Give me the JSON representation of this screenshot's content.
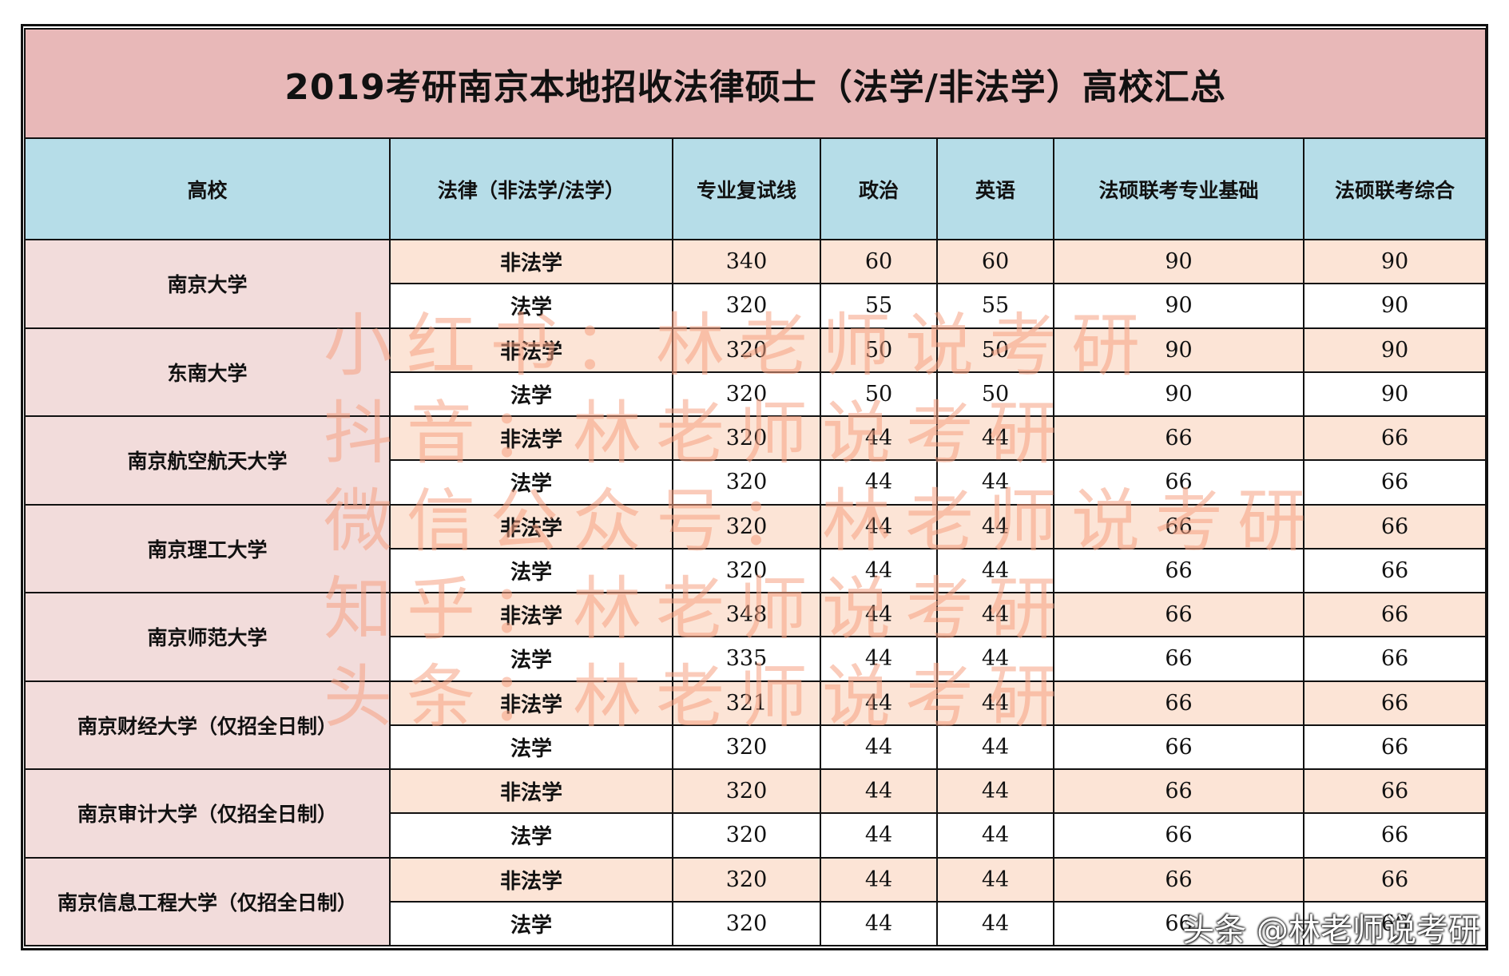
{
  "title": "2019考研南京本地招收法律硕士（法学/非法学）高校汇总",
  "headers": [
    "高校",
    "法律（非法学/法学）",
    "专业复试线",
    "政治",
    "英语",
    "法硕联考专业基础",
    "法硕联考综合"
  ],
  "rows": [
    {
      "school": "南京大学",
      "lines": [
        {
          "type": "非法学",
          "total": "340",
          "politics": "60",
          "english": "60",
          "basic": "90",
          "comprehensive": "90"
        },
        {
          "type": "法学",
          "total": "320",
          "politics": "55",
          "english": "55",
          "basic": "90",
          "comprehensive": "90"
        }
      ]
    },
    {
      "school": "东南大学",
      "lines": [
        {
          "type": "非法学",
          "total": "320",
          "politics": "50",
          "english": "50",
          "basic": "90",
          "comprehensive": "90"
        },
        {
          "type": "法学",
          "total": "320",
          "politics": "50",
          "english": "50",
          "basic": "90",
          "comprehensive": "90"
        }
      ]
    },
    {
      "school": "南京航空航天大学",
      "lines": [
        {
          "type": "非法学",
          "total": "320",
          "politics": "44",
          "english": "44",
          "basic": "66",
          "comprehensive": "66"
        },
        {
          "type": "法学",
          "total": "320",
          "politics": "44",
          "english": "44",
          "basic": "66",
          "comprehensive": "66"
        }
      ]
    },
    {
      "school": "南京理工大学",
      "lines": [
        {
          "type": "非法学",
          "total": "320",
          "politics": "44",
          "english": "44",
          "basic": "66",
          "comprehensive": "66"
        },
        {
          "type": "法学",
          "total": "320",
          "politics": "44",
          "english": "44",
          "basic": "66",
          "comprehensive": "66"
        }
      ]
    },
    {
      "school": "南京师范大学",
      "lines": [
        {
          "type": "非法学",
          "total": "348",
          "politics": "44",
          "english": "44",
          "basic": "66",
          "comprehensive": "66"
        },
        {
          "type": "法学",
          "total": "335",
          "politics": "44",
          "english": "44",
          "basic": "66",
          "comprehensive": "66"
        }
      ]
    },
    {
      "school": "南京财经大学（仅招全日制）",
      "lines": [
        {
          "type": "非法学",
          "total": "321",
          "politics": "44",
          "english": "44",
          "basic": "66",
          "comprehensive": "66"
        },
        {
          "type": "法学",
          "total": "320",
          "politics": "44",
          "english": "44",
          "basic": "66",
          "comprehensive": "66"
        }
      ]
    },
    {
      "school": "南京审计大学（仅招全日制）",
      "lines": [
        {
          "type": "非法学",
          "total": "320",
          "politics": "44",
          "english": "44",
          "basic": "66",
          "comprehensive": "66"
        },
        {
          "type": "法学",
          "total": "320",
          "politics": "44",
          "english": "44",
          "basic": "66",
          "comprehensive": "66"
        }
      ]
    },
    {
      "school": "南京信息工程大学（仅招全日制）",
      "lines": [
        {
          "type": "非法学",
          "total": "320",
          "politics": "44",
          "english": "44",
          "basic": "66",
          "comprehensive": "66"
        },
        {
          "type": "法学",
          "total": "320",
          "politics": "44",
          "english": "44",
          "basic": "66",
          "comprehensive": "66"
        }
      ]
    }
  ],
  "watermark": [
    "小红书：林老师说考研",
    "抖音：林老师说考研",
    "微信公众号：林老师说考研",
    "知乎：林老师说考研",
    "头条：林老师说考研"
  ],
  "footer_mark": "头条 @林老师说考研",
  "colors": {
    "title_bg": "#e8b8b8",
    "header_bg": "#b6dde8",
    "school_bg": "#f2dcdb",
    "odd_row_bg": "#fce4d6",
    "watermark": "#f6a082"
  }
}
